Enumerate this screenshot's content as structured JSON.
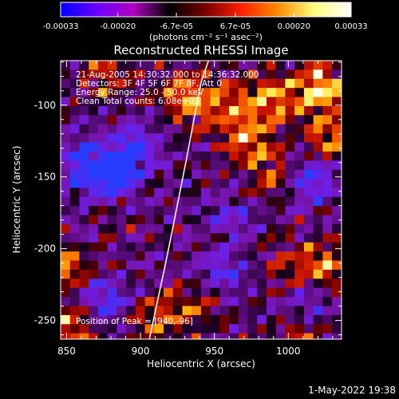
{
  "chart_data": {
    "type": "heatmap",
    "title": "Reconstructed RHESSI Image",
    "xlabel": "Heliocentric X (arcsec)",
    "ylabel": "Heliocentric Y (arcsec)",
    "xlim": [
      846,
      1036
    ],
    "ylim": [
      -263,
      -69
    ],
    "x_ticks": [
      850,
      900,
      950,
      1000
    ],
    "y_ticks": [
      -250,
      -200,
      -150,
      -100
    ],
    "grid": false,
    "colorbar": {
      "orientation": "horizontal",
      "placement": "top",
      "range": [
        -0.00033,
        0.00033
      ],
      "tick_values": [
        -0.00033,
        -0.0002,
        -6.7e-05,
        6.7e-05,
        0.0002,
        0.00033
      ],
      "tick_labels": [
        "-0.00033",
        "-0.00020",
        "-6.7e-05",
        "6.7e-05",
        "0.00020",
        "0.00033"
      ],
      "unit_label": "(photons cm⁻² s⁻¹ asec⁻²)",
      "colors": [
        "#0000ff",
        "#6a00ff",
        "#b000c0",
        "#000000",
        "#7a0000",
        "#ff2000",
        "#ff8c00",
        "#ffff80",
        "#ffffff"
      ]
    },
    "info_lines": [
      "21-Aug-2005 14:30:32.000 to 14:36:32.000",
      "Detectors: 3F 4F 5F 6F 7F 8F, Att 0",
      "Energy Range: 25.0 - 50.0 keV",
      "Clean     Total counts: 6.08e+03"
    ],
    "peak_label": "Position of Peak = [940,-96]",
    "peak_position": [
      940,
      -96
    ],
    "limb_curve": {
      "x": [
        906,
        911,
        916,
        921,
        926,
        931,
        936,
        941,
        946
      ],
      "y": [
        -263,
        -239,
        -215,
        -190,
        -164,
        -138,
        -111,
        -84,
        -69
      ]
    },
    "image_grid": {
      "nx": 30,
      "ny": 31,
      "x_start": 846,
      "y_start": -69,
      "pixel_size": 6.33
    },
    "bright_sources": [
      {
        "x": 990,
        "y": -96,
        "level": 0.85
      },
      {
        "x": 1022,
        "y": -88,
        "level": 1.0
      },
      {
        "x": 1028,
        "y": -125,
        "level": 0.8
      },
      {
        "x": 1025,
        "y": -215,
        "level": 0.75
      },
      {
        "x": 973,
        "y": -125,
        "level": 0.7
      },
      {
        "x": 850,
        "y": -210,
        "level": 0.7
      },
      {
        "x": 855,
        "y": -255,
        "level": 0.65
      },
      {
        "x": 910,
        "y": -250,
        "level": 0.6
      },
      {
        "x": 876,
        "y": -80,
        "level": 0.55
      },
      {
        "x": 938,
        "y": -240,
        "level": 0.5
      },
      {
        "x": 990,
        "y": -150,
        "level": 0.55
      },
      {
        "x": 960,
        "y": -100,
        "level": 0.6
      },
      {
        "x": 932,
        "y": -95,
        "level": 0.9
      },
      {
        "x": 1000,
        "y": -215,
        "level": 0.5
      },
      {
        "x": 872,
        "y": -180,
        "level": 0.5
      },
      {
        "x": 1005,
        "y": -260,
        "level": 0.45
      }
    ],
    "dark_sources": [
      {
        "x": 880,
        "y": -150,
        "level": -0.9
      },
      {
        "x": 895,
        "y": -130,
        "level": -0.7
      },
      {
        "x": 1015,
        "y": -150,
        "level": -0.8
      },
      {
        "x": 860,
        "y": -140,
        "level": -0.7
      },
      {
        "x": 875,
        "y": -235,
        "level": -0.6
      },
      {
        "x": 1012,
        "y": -235,
        "level": -0.5
      },
      {
        "x": 955,
        "y": -215,
        "level": -0.55
      },
      {
        "x": 960,
        "y": -175,
        "level": -0.4
      },
      {
        "x": 865,
        "y": -185,
        "level": -0.5
      }
    ]
  },
  "footer": {
    "timestamp": "1-May-2022 19:38"
  }
}
